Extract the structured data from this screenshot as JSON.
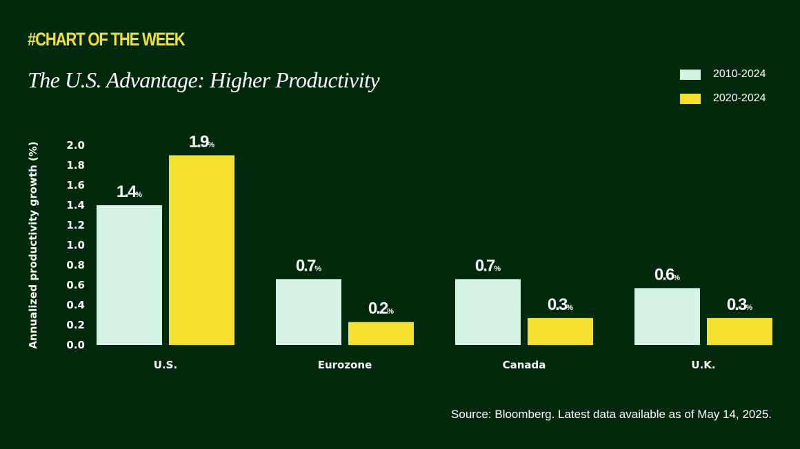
{
  "header": {
    "kicker": "#CHART OF THE WEEK"
  },
  "colors": {
    "background": "#00280b",
    "series1": "#d4f3e3",
    "series2": "#f5e02e"
  },
  "source": "Source: Bloomberg. Latest data available as of May 14, 2025.",
  "chart_data": {
    "type": "bar",
    "title": "The U.S. Advantage: Higher Productivity",
    "xlabel": "",
    "ylabel": "Annualized productivity growth (%)",
    "ylim": [
      0,
      2.0
    ],
    "yticks": [
      "0.0",
      "0.2",
      "0.4",
      "0.6",
      "0.8",
      "1.0",
      "1.2",
      "1.4",
      "1.6",
      "1.8",
      "2.0"
    ],
    "grid": false,
    "legend_position": "top-right",
    "categories": [
      "U.S.",
      "Eurozone",
      "Canada",
      "U.K."
    ],
    "series": [
      {
        "name": "2010-2024",
        "values": [
          1.4,
          0.66,
          0.66,
          0.57
        ],
        "labels": [
          "1.4",
          "0.7",
          "0.7",
          "0.6"
        ]
      },
      {
        "name": "2020-2024",
        "values": [
          1.9,
          0.23,
          0.27,
          0.27
        ],
        "labels": [
          "1.9",
          "0.2",
          "0.3",
          "0.3"
        ]
      }
    ],
    "label_suffix": "%"
  }
}
